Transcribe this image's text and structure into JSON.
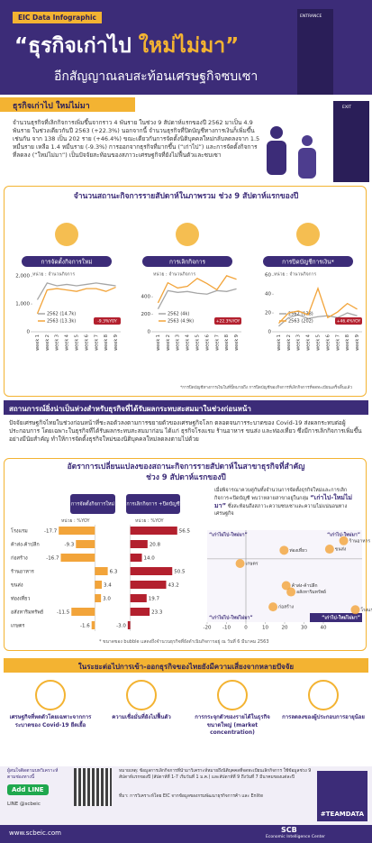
{
  "header": {
    "badge": "EIC Data Infographic",
    "title_a": "“ธุรกิจเก่าไป",
    "title_b": "ใหม่ไม่มา”",
    "subtitle": "อีกสัญญาณลบสะท้อนเศรษฐกิจซบเซา",
    "entrance": "ENTRANCE",
    "exit": "EXIT"
  },
  "intro": {
    "heading": "ธุรกิจเก่าไป ใหม่ไม่มา",
    "text": "จำนวนธุรกิจที่เลิกกิจการเพิ่มขึ้นจากราว 4 พันราย ในช่วง 9 สัปดาห์แรกของปี 2562 มาเป็น 4.9 พันราย ในช่วงเดียวกันปี 2563 (+22.3%) นอกจากนี้ จำนวนธุรกิจที่ปิดบัญชีทางการเงินก็เพิ่มขึ้นเช่นกัน จาก 138 เป็น 202 ราย (+46.4%) ขณะเดียวกันการจัดตั้งนิติบุคคลใหม่กลับลดลงจาก 1.5 หมื่นราย เหลือ 1.4 หมื่นราย (-9.3%) การออกจากธุรกิจที่มากขึ้น (“เก่าไป”) และการจัดตั้งกิจการที่ลดลง (“ใหม่ไม่มา”) เป็นปัจจัยสะท้อนของสภาวะเศรษฐกิจที่ยังไม่ฟื้นตัวและซบเซา"
  },
  "weekly_section": {
    "title": "จำนวนสถานะกิจการรายสัปดาห์ในภาพรวม ช่วง 9 สัปดาห์แรกของปี",
    "footnote": "*การปิดบัญชีทางการเงินในที่นี้หมายถึง การปิดบัญชีของกิจการที่เลิกกิจการที่จดทะเบียนเสร็จสิ้นแล้ว"
  },
  "risk_section": {
    "heading": "สถานการณ์ยิ่งน่าเป็นห่วงสำหรับธุรกิจที่ได้รับผลกระทบสะสมมาในช่วงก่อนหน้า",
    "text": "ปัจจัยเศรษฐกิจไทยในช่วงก่อนหน้าที่ชะลอตัวลงตามการขยายตัวของเศรษฐกิจโลก ตลอดจนการระบาดของ Covid-19 ส่งผลกระทบต่อผู้ประกอบการ โดยเฉพาะในธุรกิจที่ได้รับผลกระทบสะสมมาก่อน ได้แก่ ธุรกิจโรงแรม ร้านอาหาร ขนส่ง และท่องเที่ยว ซึ่งมีการเลิกกิจการเพิ่มขึ้นอย่างมีนัยสำคัญ ทำให้การจัดตั้งธุรกิจใหม่ของนิติบุคคลใหม่ลดลงตามไปด้วย"
  },
  "sector_section": {
    "title_a": "อัตราการเปลี่ยนแปลงของสถานะกิจการรายสัปดาห์ในสาขาธุรกิจที่สำคัญ",
    "title_b": "ช่วง 9 สัปดาห์แรกของปี",
    "unit_a": "หน่วย : %YOY",
    "unit_b": "หน่วย : %YOY",
    "intro_a": "เมื่อพิจารณาควบคู่กันทั้งจำนวนการจัดตั้งธุรกิจใหม่และการเลิกกิจการ+ปิดบัญชี พบว่าหลายสาขาอยู่ในกลุ่ม",
    "intro_highlight": "“เก่าไป-ใหม่ไม่มา”",
    "intro_b": "ซึ่งสะท้อนถึงสภาวะความซบเซาและความไม่แน่นอนทางเศรษฐกิจ",
    "note": "* ขนาดของ bubble แสดงถึงจำนวนธุรกิจที่ยังดำเนินกิจการอยู่ ณ วันที่ 6 มีนาคม 2563"
  },
  "outlook": {
    "heading": "ในระยะต่อไปการเข้า-ออกธุรกิจของไทยยังมีความเสี่ยงจากหลายปัจจัย",
    "items": [
      "เศรษฐกิจที่หดตัวโดยเฉพาะจากการระบาดของ Covid-19 ยืดเยื้อ",
      "ความเชื่อมั่นที่ยังไม่ฟื้นตัว",
      "การกระจุกตัวของรายได้ในธุรกิจขนาดใหญ่ (market concentration)",
      "การลดลงของผู้ประกอบการอายุน้อย"
    ]
  },
  "footer": {
    "follow": "ผู้สนใจติดตามบทวิเคราะห์ ตามช่องทางนี้",
    "add_line": "Add LINE",
    "line_id": "LINE @scbeic",
    "note": "หมายเหตุ: ข้อมูลการเลิกกิจการที่นำมาวิเคราะห์หมายถึงนิติบุคคลที่จดทะเบียนเลิกกิจการ ใช้ข้อมูลช่วง 9 สัปดาห์แรกของปี (สัปดาห์ที่ 1-7 เริ่มวันที่ 1 ม.ค.) และสัปดาห์ที่ 9 ถึงวันที่ 7 มีนาคมของแต่ละปี",
    "source": "ที่มา: การวิเคราะห์โดย EIC จากข้อมูลของกรมพัฒนาธุรกิจการค้า และ Enlite",
    "tag": "#TEAMDATA",
    "url": "www.scbeic.com",
    "brand": "SCB",
    "brand_sub": "Economic Intelligence Center"
  },
  "chart_data": [
    {
      "type": "line",
      "title": "การจัดตั้งกิจการใหม่",
      "unit": "หน่วย : จำนวนกิจการ",
      "annotation": "-9.3%YOY",
      "categories": [
        "week 1",
        "week 2",
        "week 3",
        "week 4",
        "week 5",
        "week 6",
        "week 7",
        "week 8",
        "week 9"
      ],
      "series": [
        {
          "name": "2562 (14.7k)",
          "color": "#a6a6a6",
          "values": [
            1150,
            1750,
            1650,
            1700,
            1650,
            1700,
            1750,
            1700,
            1650
          ]
        },
        {
          "name": "2563 (13.3k)",
          "color": "#f2a43a",
          "values": [
            650,
            1500,
            1550,
            1500,
            1450,
            1550,
            1550,
            1450,
            1600
          ]
        }
      ],
      "ylim": [
        0,
        2200
      ],
      "yticks": [
        0,
        {
          "value": 1000,
          "label": "1,000"
        },
        {
          "value": 2000,
          "label": "2,000"
        }
      ]
    },
    {
      "type": "line",
      "title": "การเลิกกิจการ",
      "unit": "หน่วย : จำนวนกิจการ",
      "annotation": "+22.3%YOY",
      "categories": [
        "week 1",
        "week 2",
        "week 3",
        "week 4",
        "week 5",
        "week 6",
        "week 7",
        "week 8",
        "week 9"
      ],
      "series": [
        {
          "name": "2562 (4k)",
          "color": "#a6a6a6",
          "values": [
            260,
            470,
            450,
            460,
            440,
            430,
            470,
            460,
            490
          ]
        },
        {
          "name": "2563 (4.9k)",
          "color": "#f2a43a",
          "values": [
            330,
            560,
            500,
            520,
            610,
            550,
            480,
            640,
            600
          ]
        }
      ],
      "ylim": [
        0,
        700
      ],
      "yticks": [
        0,
        200,
        400
      ]
    },
    {
      "type": "line",
      "title": "การปิดบัญชีการเงิน*",
      "unit": "หน่วย : จำนวนกิจการ",
      "annotation": "+46.4%YOY",
      "categories": [
        "week 1",
        "week 2",
        "week 3",
        "week 4",
        "week 5",
        "week 6",
        "week 7",
        "week 8",
        "week 9"
      ],
      "series": [
        {
          "name": "2562 (138)",
          "color": "#a6a6a6",
          "values": [
            6,
            15,
            18,
            14,
            16,
            17,
            15,
            20,
            17
          ]
        },
        {
          "name": "2563 (202)",
          "color": "#f2a43a",
          "values": [
            9,
            20,
            22,
            18,
            46,
            15,
            21,
            30,
            24
          ]
        }
      ],
      "ylim": [
        0,
        65
      ],
      "yticks": [
        0,
        20,
        40,
        60
      ]
    },
    {
      "type": "bar",
      "orientation": "horizontal",
      "categories": [
        "โรงแรม",
        "ค้าส่ง-ค้าปลีก",
        "ก่อสร้าง",
        "ร้านอาหาร",
        "ขนส่ง",
        "ท่องเที่ยว",
        "อสังหาริมทรัพย์",
        "เกษตร"
      ],
      "series": [
        {
          "name": "การจัดตั้งกิจการใหม่",
          "color": "#f2a43a",
          "xlim": [
            -20,
            10
          ],
          "values": [
            -17.7,
            -9.3,
            -16.7,
            6.3,
            3.4,
            3.0,
            -11.5,
            -1.6
          ],
          "value_labels": [
            "-17.7",
            "-9.3",
            "-16.7",
            "6.3",
            "3.4",
            "3.0",
            "-11.5",
            "-1.6"
          ]
        },
        {
          "name": "การเลิกกิจการ +ปิดบัญชี",
          "color": "#b3202e",
          "xlim": [
            -5,
            60
          ],
          "values": [
            56.5,
            20.8,
            14.0,
            50.5,
            43.2,
            19.7,
            23.3,
            -3.0
          ],
          "value_labels": [
            "56.5",
            "20.8",
            "14.0",
            "50.5",
            "43.2",
            "19.7",
            "23.3",
            "-3.0"
          ]
        }
      ]
    },
    {
      "type": "scatter",
      "color": "#f2a43a",
      "quadrants": [
        "“เก่าไม่ไป-ใหม่มา”",
        "“เก่าไป-ใหม่มา”",
        "“เก่าไม่ไป-ใหม่ไม่มา”",
        "“เก่าไป-ใหม่ไม่มา”"
      ],
      "xlim": [
        -20,
        60
      ],
      "xticks": [
        -20,
        -10,
        0,
        10,
        20,
        30,
        40
      ],
      "ylim": [
        -22,
        10
      ]
    }
  ]
}
